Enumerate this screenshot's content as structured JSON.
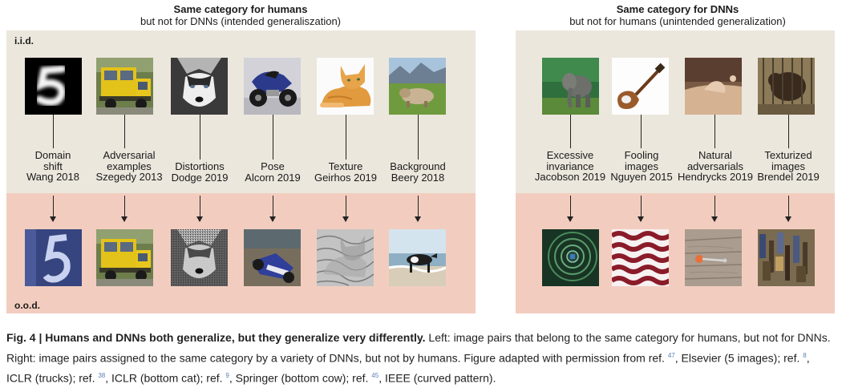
{
  "left": {
    "heading_title": "Same category for humans",
    "heading_sub": "but not for DNNs (intended generaliszation)",
    "iid_tag": "i.i.d.",
    "ood_tag": "o.o.d.",
    "items": [
      {
        "line1": "Domain",
        "line2": "shift",
        "line3": "Wang 2018"
      },
      {
        "line1": "Adversarial",
        "line2": "examples",
        "line3": "Szegedy 2013"
      },
      {
        "line1": "",
        "line2": "Distortions",
        "line3": "Dodge 2019"
      },
      {
        "line1": "",
        "line2": "Pose",
        "line3": "Alcorn 2019"
      },
      {
        "line1": "",
        "line2": "Texture",
        "line3": "Geirhos 2019"
      },
      {
        "line1": "",
        "line2": "Background",
        "line3": "Beery 2018"
      }
    ]
  },
  "right": {
    "heading_title": "Same category for DNNs",
    "heading_sub": "but not for humans (unintended generalization)",
    "items": [
      {
        "line1": "Excessive",
        "line2": "invariance",
        "line3": "Jacobson 2019"
      },
      {
        "line1": "Fooling",
        "line2": "images",
        "line3": "Nguyen 2015"
      },
      {
        "line1": "Natural",
        "line2": "adversarials",
        "line3": "Hendrycks 2019"
      },
      {
        "line1": "Texturized",
        "line2": "images",
        "line3": "Brendel 2019"
      }
    ]
  },
  "caption": {
    "bold": "Fig. 4 | Humans and DNNs both generalize, but they generalize very differently.",
    "p1": " Left: image pairs that belong to the same category for humans, but not for DNNs. Right: image pairs assigned to the same category by a variety of DNNs, but not by humans. Figure adapted with permission from ref. ",
    "r1": "47",
    "p2": ", Elsevier (5 images); ref. ",
    "r2": "8",
    "p3": ", ICLR (trucks); ref. ",
    "r3": "38",
    "p4": ", ICLR (bottom cat); ref. ",
    "r4": "9",
    "p5": ", Springer (bottom cow); ref. ",
    "r5": "45",
    "p6": ", IEEE (curved pattern)."
  }
}
